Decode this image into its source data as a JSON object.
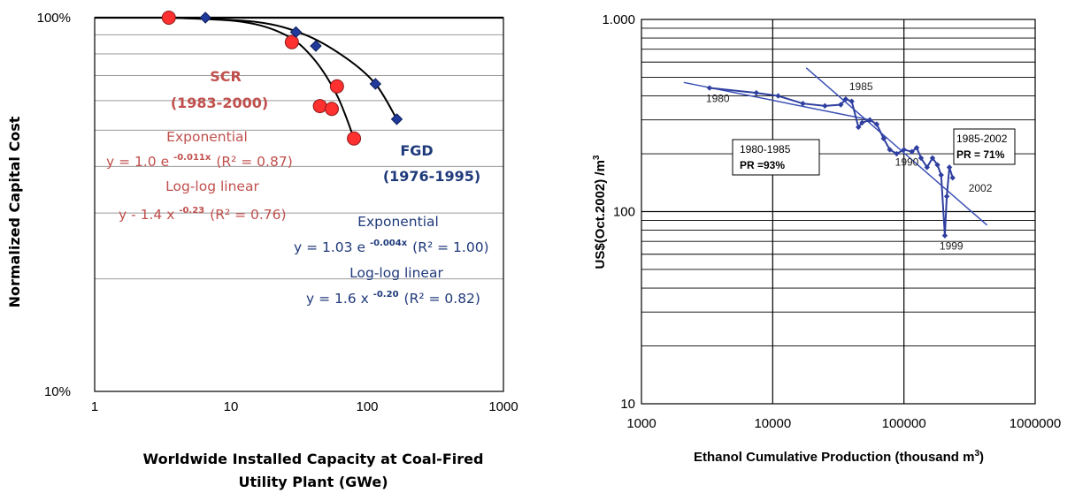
{
  "chart_data": [
    {
      "type": "scatter",
      "title": "",
      "xlabel": "Worldwide Installed Capacity at Coal-Fired Utility Plant (GWe)",
      "ylabel": "Normalized Capital Cost",
      "xscale": "log",
      "yscale": "log",
      "xlim": [
        1,
        1000
      ],
      "ylim": [
        0.1,
        1.0
      ],
      "x_ticks": [
        "1",
        "10",
        "100",
        "1000"
      ],
      "y_ticks": [
        "10%",
        "100%"
      ],
      "series": [
        {
          "name": "SCR",
          "color": "#ff3030",
          "marker": "circle",
          "points": [
            [
              3.5,
              1.0
            ],
            [
              28,
              0.86
            ],
            [
              45,
              0.58
            ],
            [
              55,
              0.57
            ],
            [
              60,
              0.655
            ],
            [
              80,
              0.475
            ]
          ]
        },
        {
          "name": "FGD",
          "color": "#1f3a9a",
          "marker": "diamond",
          "points": [
            [
              6.5,
              1.0
            ],
            [
              30,
              0.915
            ],
            [
              42,
              0.84
            ],
            [
              115,
              0.665
            ],
            [
              165,
              0.535
            ]
          ]
        }
      ],
      "annotations": {
        "scr_name": "SCR",
        "scr_period": "(1983-2000)",
        "scr_exp_title": "Exponential",
        "scr_exp_a": "y = 1.0 e",
        "scr_exp_sup": "-0.011x",
        "scr_exp_r2": "(R² = 0.87)",
        "scr_log_title": "Log-log linear",
        "scr_log_a": "y - 1.4 x",
        "scr_log_sup": "-0.23",
        "scr_log_r2": "(R² = 0.76)",
        "fgd_name": "FGD",
        "fgd_period": "(1976-1995)",
        "fgd_exp_title": "Exponential",
        "fgd_exp_a": "y = 1.03 e",
        "fgd_exp_sup": "-0.004x",
        "fgd_exp_r2": "(R² = 1.00)",
        "fgd_log_title": "Log-log linear",
        "fgd_log_a": "y = 1.6 x",
        "fgd_log_sup": "-0.20",
        "fgd_log_r2": "(R² = 0.82)"
      },
      "grid": true
    },
    {
      "type": "line",
      "title": "",
      "xlabel_main": "Ethanol Cumulative Production (thousand m",
      "xlabel_sup": "3",
      "xlabel_end": ")",
      "ylabel_main": "US$(Oct.2002) /m",
      "ylabel_sup": "3",
      "xscale": "log",
      "yscale": "log",
      "xlim": [
        1000,
        1000000
      ],
      "ylim": [
        10,
        1000
      ],
      "x_ticks": [
        "1000",
        "10000",
        "100000",
        "1000000"
      ],
      "y_ticks": [
        "10",
        "100",
        "1.000"
      ],
      "series": [
        {
          "name": "",
          "color": "#2f3f9f",
          "marker": "diamond",
          "points": [
            [
              3300,
              440
            ],
            [
              7500,
              415
            ],
            [
              11000,
              400
            ],
            [
              17000,
              365
            ],
            [
              25000,
              355
            ],
            [
              33000,
              360
            ],
            [
              36000,
              385
            ],
            [
              40000,
              375
            ],
            [
              45000,
              275
            ],
            [
              48000,
              290
            ],
            [
              55000,
              300
            ],
            [
              62000,
              285
            ],
            [
              70000,
              240
            ],
            [
              78000,
              210
            ],
            [
              88000,
              200
            ],
            [
              100000,
              210
            ],
            [
              115000,
              205
            ],
            [
              125000,
              215
            ],
            [
              135000,
              190
            ],
            [
              150000,
              170
            ],
            [
              165000,
              190
            ],
            [
              180000,
              175
            ],
            [
              192000,
              155
            ],
            [
              205000,
              75
            ],
            [
              212000,
              120
            ],
            [
              222000,
              170
            ],
            [
              235000,
              150
            ]
          ]
        }
      ],
      "fit_lines": [
        {
          "name": "1980-1985",
          "points": [
            [
              2100,
              470
            ],
            [
              58000,
              298
            ]
          ]
        },
        {
          "name": "1985-2002",
          "points": [
            [
              18000,
              560
            ],
            [
              430000,
              85
            ]
          ]
        }
      ],
      "year_labels": [
        {
          "text": "1980",
          "x": 3300,
          "y": 440
        },
        {
          "text": "1985",
          "x": 36000,
          "y": 385
        },
        {
          "text": "1990",
          "x": 100000,
          "y": 210
        },
        {
          "text": "1999",
          "x": 205000,
          "y": 75
        },
        {
          "text": "2002",
          "x": 235000,
          "y": 150
        }
      ],
      "boxes": [
        {
          "period": "1980-1985",
          "pr": "PR =93%"
        },
        {
          "period": "1985-2002",
          "pr": "PR = 71%"
        }
      ],
      "grid": true
    }
  ]
}
